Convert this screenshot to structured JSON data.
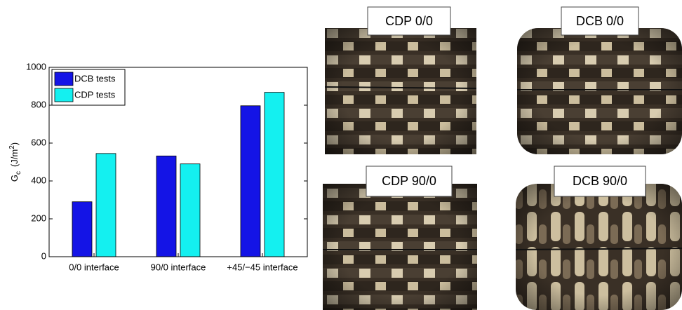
{
  "chart_data": {
    "type": "bar",
    "y_label": [
      "G",
      "c",
      "(J/m",
      "2",
      ")"
    ],
    "categories": [
      "0/0 interface",
      "90/0 interface",
      "+45/−45 interface"
    ],
    "series": [
      {
        "name": "DCB tests",
        "color": "#1414e6",
        "values": [
          290,
          532,
          797
        ]
      },
      {
        "name": "CDP tests",
        "color": "#14f0f0",
        "values": [
          545,
          490,
          868
        ]
      }
    ],
    "ylim": [
      0,
      1000
    ],
    "yticks": [
      0,
      200,
      400,
      600,
      800,
      1000
    ],
    "grid": false,
    "legend": "top-left"
  },
  "images": [
    {
      "label": "CDP 0/0"
    },
    {
      "label": "DCB 0/0"
    },
    {
      "label": "CDP 90/0"
    },
    {
      "label": "DCB 90/0"
    }
  ]
}
